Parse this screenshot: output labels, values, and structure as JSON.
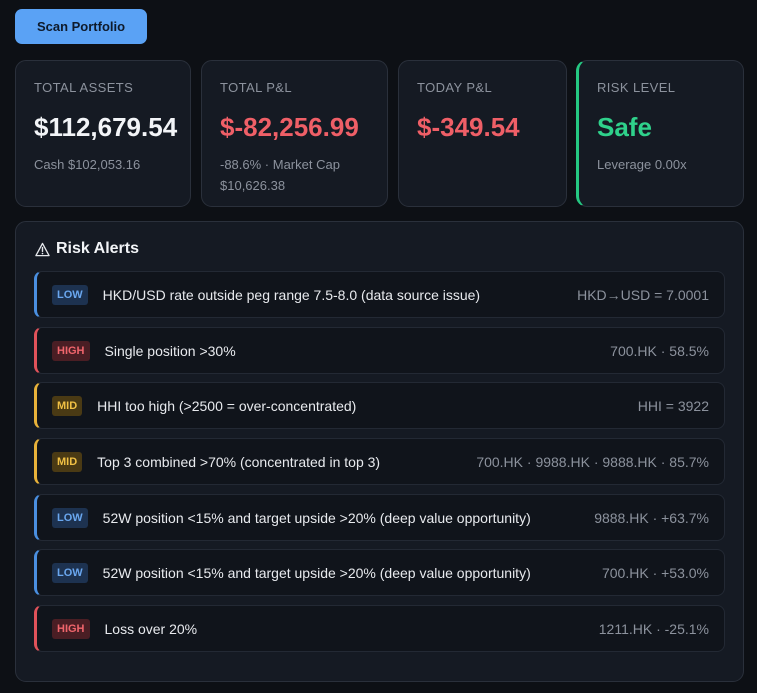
{
  "toolbar": {
    "scan_label": "Scan Portfolio"
  },
  "cards": [
    {
      "label": "TOTAL ASSETS",
      "value": "$112,679.54",
      "sub": "Cash $102,053.16"
    },
    {
      "label": "TOTAL P&L",
      "value": "$-82,256.99",
      "sub": "-88.6% · Market Cap $10,626.38"
    },
    {
      "label": "TODAY P&L",
      "value": "$-349.54",
      "sub": ""
    },
    {
      "label": "RISK LEVEL",
      "value": "Safe",
      "sub": "Leverage 0.00x"
    }
  ],
  "alerts": {
    "title": "Risk Alerts",
    "items": [
      {
        "level": "LOW",
        "text": "HKD/USD rate outside peg range 7.5-8.0 (data source issue)",
        "detail": "HKD→USD = 7.0001"
      },
      {
        "level": "HIGH",
        "text": "Single position >30%",
        "detail": "700.HK · 58.5%"
      },
      {
        "level": "MID",
        "text": "HHI too high (>2500 = over-concentrated)",
        "detail": "HHI = 3922"
      },
      {
        "level": "MID",
        "text": "Top 3 combined >70% (concentrated in top 3)",
        "detail": "700.HK · 9988.HK · 9888.HK · 85.7%"
      },
      {
        "level": "LOW",
        "text": "52W position <15% and target upside >20% (deep value opportunity)",
        "detail": "9888.HK · +63.7%"
      },
      {
        "level": "LOW",
        "text": "52W position <15% and target upside >20% (deep value opportunity)",
        "detail": "700.HK · +53.0%"
      },
      {
        "level": "HIGH",
        "text": "Loss over 20%",
        "detail": "1211.HK · -25.1%"
      }
    ]
  },
  "colors": {
    "accent_button": "#5aa2f5",
    "loss_red": "#ef5f67",
    "safe_green": "#2fd18b",
    "low_blue": "#4a8fe0",
    "mid_amber": "#e8b23a",
    "high_red": "#e0525a"
  },
  "icons": {
    "alerts_title_icon": "warning-triangle-icon"
  }
}
